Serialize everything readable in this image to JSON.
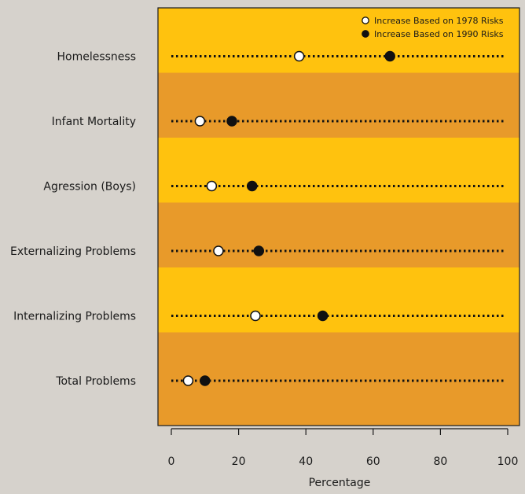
{
  "chart_data": {
    "type": "scatter",
    "title": "",
    "xlabel": "Percentage",
    "ylabel": "",
    "xlim": [
      0,
      100
    ],
    "x_ticks": [
      0,
      20,
      40,
      60,
      80,
      100
    ],
    "categories": [
      "Homelessness",
      "Infant Mortality",
      "Agression (Boys)",
      "Externalizing Problems",
      "Internalizing Problems",
      "Total Problems"
    ],
    "series": [
      {
        "name": "Increase Based on 1978 Risks",
        "marker": "open-circle",
        "values": [
          38,
          8.5,
          12,
          14,
          25,
          5
        ]
      },
      {
        "name": "Increase Based on 1990 Risks",
        "marker": "filled-circle",
        "values": [
          65,
          18,
          24,
          26,
          45,
          10
        ]
      }
    ],
    "legend_position": "top-right",
    "band_colors": [
      "#ffc20e",
      "#e89a2a"
    ],
    "background_color": "#d6d2cc"
  }
}
